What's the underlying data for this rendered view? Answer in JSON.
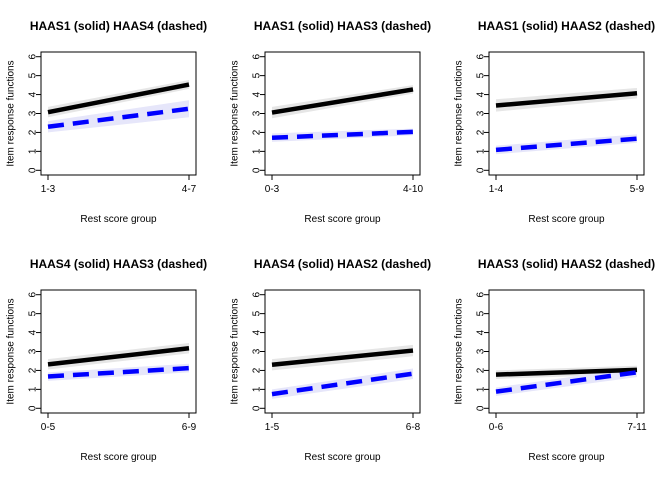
{
  "chart_data": [
    {
      "type": "line",
      "title": "HAAS1 (solid) HAAS4 (dashed)",
      "xlabel": "Rest score group",
      "ylabel": "Item response functions",
      "categories": [
        "1-3",
        "4-7"
      ],
      "ylim": [
        0,
        6
      ],
      "yticks": [
        0,
        1,
        2,
        3,
        4,
        5,
        6
      ],
      "series": [
        {
          "style": "solid",
          "color": "#000000",
          "band": "#e6e6e6",
          "values": [
            3.07,
            4.53
          ],
          "band_lower": [
            2.8,
            4.3
          ],
          "band_upper": [
            3.35,
            4.77
          ]
        },
        {
          "style": "dashed",
          "color": "#0000ff",
          "band": "#e6e6fa",
          "values": [
            2.3,
            3.25
          ],
          "band_lower": [
            2.0,
            2.8
          ],
          "band_upper": [
            2.6,
            3.7
          ]
        }
      ]
    },
    {
      "type": "line",
      "title": "HAAS1 (solid) HAAS3 (dashed)",
      "xlabel": "Rest score group",
      "ylabel": "Item response functions",
      "categories": [
        "0-3",
        "4-10"
      ],
      "ylim": [
        0,
        6
      ],
      "yticks": [
        0,
        1,
        2,
        3,
        4,
        5,
        6
      ],
      "series": [
        {
          "style": "solid",
          "color": "#000000",
          "band": "#e6e6e6",
          "values": [
            3.05,
            4.27
          ],
          "band_lower": [
            2.75,
            4.05
          ],
          "band_upper": [
            3.35,
            4.5
          ]
        },
        {
          "style": "dashed",
          "color": "#0000ff",
          "band": "#e6e6fa",
          "values": [
            1.72,
            2.03
          ],
          "band_lower": [
            1.5,
            1.85
          ],
          "band_upper": [
            1.95,
            2.2
          ]
        }
      ]
    },
    {
      "type": "line",
      "title": "HAAS1 (solid) HAAS2 (dashed)",
      "xlabel": "Rest score group",
      "ylabel": "Item response functions",
      "categories": [
        "1-4",
        "5-9"
      ],
      "ylim": [
        0,
        6
      ],
      "yticks": [
        0,
        1,
        2,
        3,
        4,
        5,
        6
      ],
      "series": [
        {
          "style": "solid",
          "color": "#000000",
          "band": "#e6e6e6",
          "values": [
            3.42,
            4.07
          ],
          "band_lower": [
            3.1,
            3.8
          ],
          "band_upper": [
            3.75,
            4.35
          ]
        },
        {
          "style": "dashed",
          "color": "#0000ff",
          "band": "#e6e6fa",
          "values": [
            1.08,
            1.67
          ],
          "band_lower": [
            0.85,
            1.45
          ],
          "band_upper": [
            1.3,
            1.9
          ]
        }
      ]
    },
    {
      "type": "line",
      "title": "HAAS4 (solid) HAAS3 (dashed)",
      "xlabel": "Rest score group",
      "ylabel": "Item response functions",
      "categories": [
        "0-5",
        "6-9"
      ],
      "ylim": [
        0,
        6
      ],
      "yticks": [
        0,
        1,
        2,
        3,
        4,
        5,
        6
      ],
      "series": [
        {
          "style": "solid",
          "color": "#000000",
          "band": "#e6e6e6",
          "values": [
            2.32,
            3.17
          ],
          "band_lower": [
            2.05,
            2.9
          ],
          "band_upper": [
            2.6,
            3.45
          ]
        },
        {
          "style": "dashed",
          "color": "#0000ff",
          "band": "#e6e6fa",
          "values": [
            1.68,
            2.12
          ],
          "band_lower": [
            1.45,
            1.9
          ],
          "band_upper": [
            1.9,
            2.35
          ]
        }
      ]
    },
    {
      "type": "line",
      "title": "HAAS4 (solid) HAAS2 (dashed)",
      "xlabel": "Rest score group",
      "ylabel": "Item response functions",
      "categories": [
        "1-5",
        "6-8"
      ],
      "ylim": [
        0,
        6
      ],
      "yticks": [
        0,
        1,
        2,
        3,
        4,
        5,
        6
      ],
      "series": [
        {
          "style": "solid",
          "color": "#000000",
          "band": "#e6e6e6",
          "values": [
            2.3,
            3.05
          ],
          "band_lower": [
            2.0,
            2.75
          ],
          "band_upper": [
            2.6,
            3.35
          ]
        },
        {
          "style": "dashed",
          "color": "#0000ff",
          "band": "#e6e6fa",
          "values": [
            0.75,
            1.83
          ],
          "band_lower": [
            0.5,
            1.55
          ],
          "band_upper": [
            1.0,
            2.1
          ]
        }
      ]
    },
    {
      "type": "line",
      "title": "HAAS3 (solid) HAAS2 (dashed)",
      "xlabel": "Rest score group",
      "ylabel": "Item response functions",
      "categories": [
        "0-6",
        "7-11"
      ],
      "ylim": [
        0,
        6
      ],
      "yticks": [
        0,
        1,
        2,
        3,
        4,
        5,
        6
      ],
      "series": [
        {
          "style": "solid",
          "color": "#000000",
          "band": "#e6e6e6",
          "values": [
            1.78,
            2.03
          ],
          "band_lower": [
            1.55,
            1.8
          ],
          "band_upper": [
            2.0,
            2.25
          ]
        },
        {
          "style": "dashed",
          "color": "#0000ff",
          "band": "#e6e6fa",
          "values": [
            0.88,
            1.9
          ],
          "band_lower": [
            0.65,
            1.65
          ],
          "band_upper": [
            1.1,
            2.15
          ]
        }
      ]
    }
  ]
}
